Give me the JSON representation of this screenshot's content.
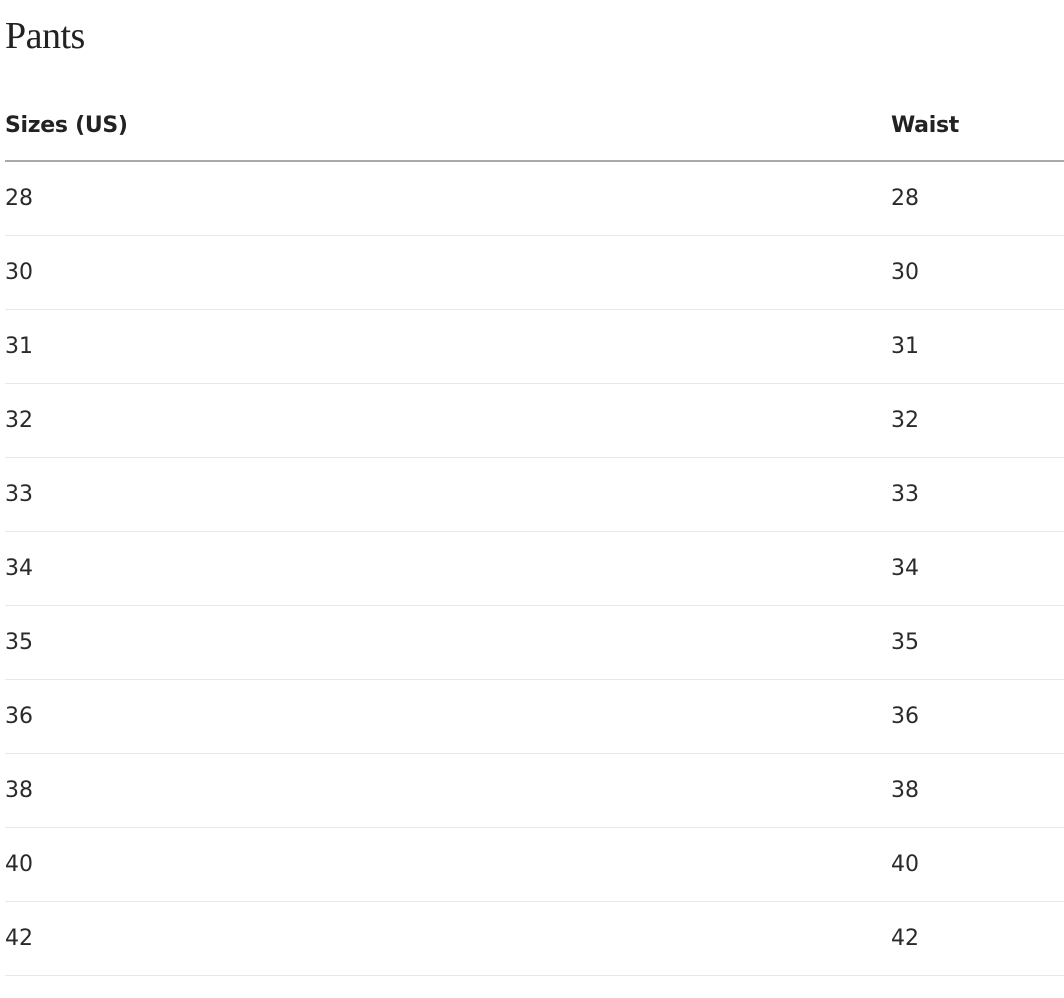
{
  "title": "Pants",
  "table": {
    "headers": [
      "Sizes (US)",
      "Waist"
    ],
    "rows": [
      [
        "28",
        "28"
      ],
      [
        "30",
        "30"
      ],
      [
        "31",
        "31"
      ],
      [
        "32",
        "32"
      ],
      [
        "33",
        "33"
      ],
      [
        "34",
        "34"
      ],
      [
        "35",
        "35"
      ],
      [
        "36",
        "36"
      ],
      [
        "38",
        "38"
      ],
      [
        "40",
        "40"
      ],
      [
        "42",
        "42"
      ]
    ]
  }
}
